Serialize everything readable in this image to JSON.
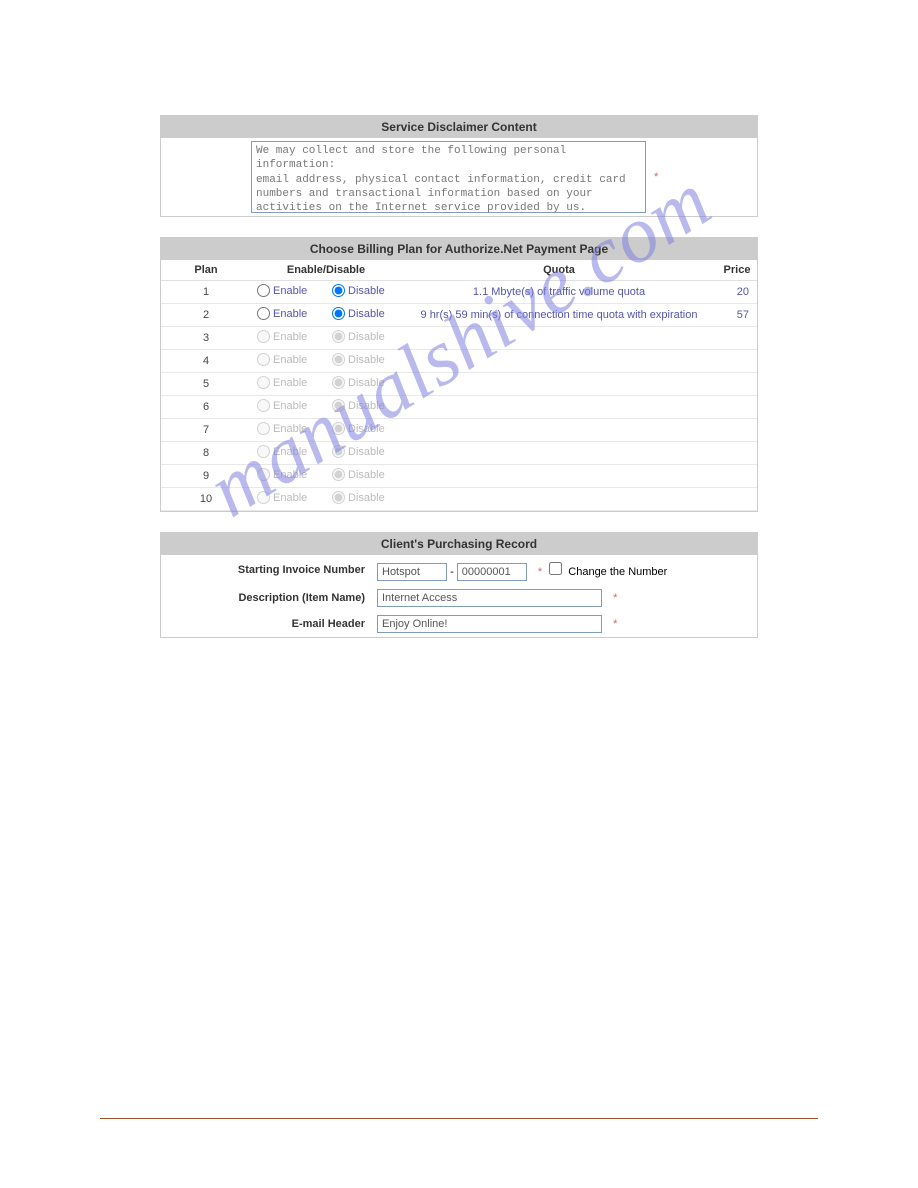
{
  "watermark_text": "manualshive.com",
  "disclaimer": {
    "header": "Service Disclaimer Content",
    "text": "We may collect and store the following personal information:\nemail address, physical contact information, credit card numbers and transactional information based on your activities on the Internet service provided by us.",
    "required_marker": "*"
  },
  "billing": {
    "header": "Choose Billing Plan for Authorize.Net Payment Page",
    "col_plan": "Plan",
    "col_enabledisable": "Enable/Disable",
    "col_quota": "Quota",
    "col_price": "Price",
    "enable_label": "Enable",
    "disable_label": "Disable",
    "rows": [
      {
        "plan": "1",
        "active": true,
        "quota": "1.1 Mbyte(s) of traffic volume quota",
        "price": "20"
      },
      {
        "plan": "2",
        "active": true,
        "quota": "9 hr(s) 59 min(s) of connection time quota with expiration",
        "price": "57"
      },
      {
        "plan": "3",
        "active": false,
        "quota": "",
        "price": ""
      },
      {
        "plan": "4",
        "active": false,
        "quota": "",
        "price": ""
      },
      {
        "plan": "5",
        "active": false,
        "quota": "",
        "price": ""
      },
      {
        "plan": "6",
        "active": false,
        "quota": "",
        "price": ""
      },
      {
        "plan": "7",
        "active": false,
        "quota": "",
        "price": ""
      },
      {
        "plan": "8",
        "active": false,
        "quota": "",
        "price": ""
      },
      {
        "plan": "9",
        "active": false,
        "quota": "",
        "price": ""
      },
      {
        "plan": "10",
        "active": false,
        "quota": "",
        "price": ""
      }
    ]
  },
  "record": {
    "header": "Client's Purchasing Record",
    "invoice_label": "Starting Invoice Number",
    "invoice_prefix": "Hotspot",
    "invoice_sep": "-",
    "invoice_num": "00000001",
    "invoice_req": "*",
    "change_label": "Change the Number",
    "desc_label": "Description (Item Name)",
    "desc_value": "Internet Access",
    "desc_req": "*",
    "email_label": "E-mail Header",
    "email_value": "Enjoy Online!",
    "email_req": "*"
  }
}
